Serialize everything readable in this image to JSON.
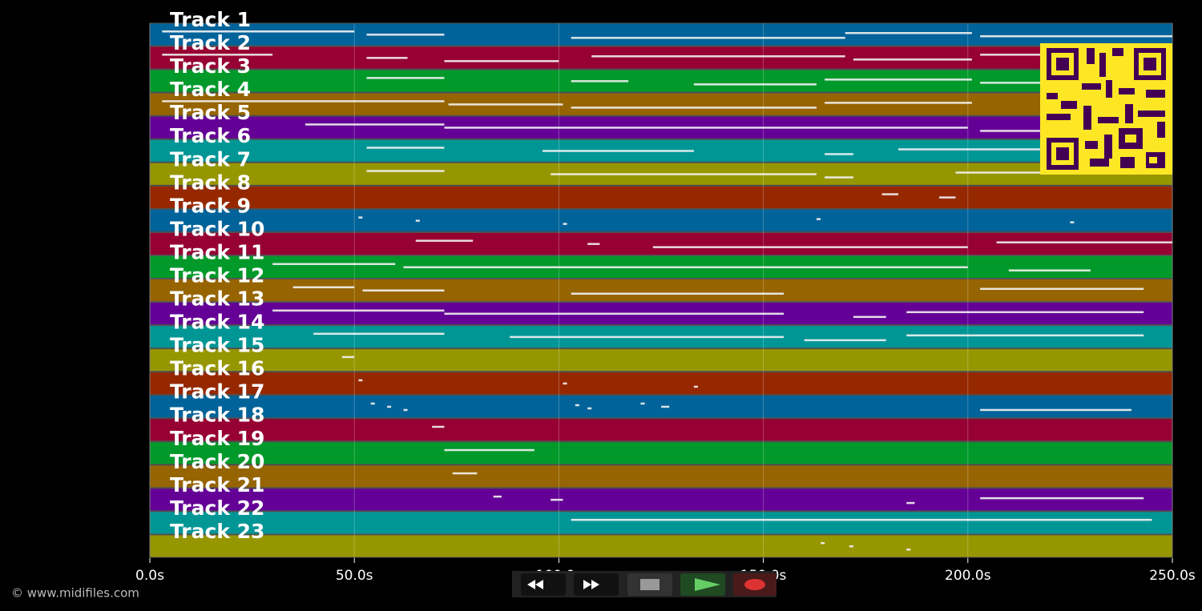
{
  "chart_data": {
    "type": "timeline",
    "xlim": [
      0,
      250
    ],
    "xticks": [
      {
        "value": 0,
        "label": "0.0s"
      },
      {
        "value": 50,
        "label": "50.0s"
      },
      {
        "value": 100,
        "label": "100.0s"
      },
      {
        "value": 150,
        "label": "150.0s"
      },
      {
        "value": 200,
        "label": "200.0s"
      },
      {
        "value": 250,
        "label": "250.0s"
      }
    ],
    "grid": true,
    "tracks": [
      {
        "name": "Track 1",
        "color": "#00639a",
        "notes": [
          [
            3,
            50
          ],
          [
            53,
            72
          ],
          [
            103,
            170
          ],
          [
            170,
            201
          ],
          [
            203,
            250
          ]
        ]
      },
      {
        "name": "Track 2",
        "color": "#960032",
        "notes": [
          [
            3,
            30
          ],
          [
            53,
            63
          ],
          [
            72,
            100
          ],
          [
            108,
            170
          ],
          [
            172,
            201
          ],
          [
            203,
            218
          ]
        ]
      },
      {
        "name": "Track 3",
        "color": "#00992a",
        "notes": [
          [
            53,
            72
          ],
          [
            103,
            117
          ],
          [
            133,
            163
          ],
          [
            165,
            201
          ],
          [
            203,
            218
          ]
        ]
      },
      {
        "name": "Track 4",
        "color": "#966400",
        "notes": [
          [
            3,
            72
          ],
          [
            73,
            101
          ],
          [
            103,
            163
          ],
          [
            165,
            201
          ]
        ]
      },
      {
        "name": "Track 5",
        "color": "#640096",
        "notes": [
          [
            38,
            72
          ],
          [
            72,
            200
          ],
          [
            203,
            218
          ]
        ]
      },
      {
        "name": "Track 6",
        "color": "#009696",
        "notes": [
          [
            53,
            72
          ],
          [
            96,
            133
          ],
          [
            165,
            172
          ],
          [
            183,
            218
          ]
        ]
      },
      {
        "name": "Track 7",
        "color": "#969600",
        "notes": [
          [
            53,
            72
          ],
          [
            98,
            163
          ],
          [
            165,
            172
          ],
          [
            197,
            218
          ]
        ]
      },
      {
        "name": "Track 8",
        "color": "#962800",
        "notes": [
          [
            179,
            183
          ],
          [
            193,
            197
          ]
        ]
      },
      {
        "name": "Track 9",
        "color": "#00639a",
        "notes": [
          [
            51,
            52
          ],
          [
            65,
            66
          ],
          [
            101,
            102
          ],
          [
            163,
            164
          ],
          [
            225,
            226
          ]
        ]
      },
      {
        "name": "Track 10",
        "color": "#960032",
        "notes": [
          [
            65,
            79
          ],
          [
            107,
            110
          ],
          [
            123,
            200
          ],
          [
            207,
            250
          ]
        ]
      },
      {
        "name": "Track 11",
        "color": "#00992a",
        "notes": [
          [
            30,
            60
          ],
          [
            62,
            200
          ],
          [
            210,
            230
          ]
        ]
      },
      {
        "name": "Track 12",
        "color": "#966400",
        "notes": [
          [
            35,
            50
          ],
          [
            52,
            72
          ],
          [
            103,
            155
          ],
          [
            203,
            243
          ]
        ]
      },
      {
        "name": "Track 13",
        "color": "#640096",
        "notes": [
          [
            30,
            72
          ],
          [
            72,
            155
          ],
          [
            172,
            180
          ],
          [
            185,
            243
          ]
        ]
      },
      {
        "name": "Track 14",
        "color": "#009696",
        "notes": [
          [
            40,
            72
          ],
          [
            88,
            155
          ],
          [
            160,
            180
          ],
          [
            185,
            243
          ]
        ]
      },
      {
        "name": "Track 15",
        "color": "#969600",
        "notes": [
          [
            47,
            50
          ]
        ]
      },
      {
        "name": "Track 16",
        "color": "#962800",
        "notes": [
          [
            51,
            52
          ],
          [
            101,
            102
          ],
          [
            133,
            134
          ]
        ]
      },
      {
        "name": "Track 17",
        "color": "#00639a",
        "notes": [
          [
            54,
            55
          ],
          [
            58,
            59
          ],
          [
            62,
            63
          ],
          [
            104,
            105
          ],
          [
            107,
            108
          ],
          [
            120,
            121
          ],
          [
            125,
            127
          ],
          [
            203,
            240
          ]
        ]
      },
      {
        "name": "Track 18",
        "color": "#960032",
        "notes": [
          [
            69,
            72
          ]
        ]
      },
      {
        "name": "Track 19",
        "color": "#00992a",
        "notes": [
          [
            72,
            94
          ]
        ]
      },
      {
        "name": "Track 20",
        "color": "#966400",
        "notes": [
          [
            74,
            80
          ]
        ]
      },
      {
        "name": "Track 21",
        "color": "#640096",
        "notes": [
          [
            84,
            86
          ],
          [
            98,
            101
          ],
          [
            185,
            187
          ],
          [
            203,
            243
          ]
        ]
      },
      {
        "name": "Track 22",
        "color": "#009696",
        "notes": [
          [
            103,
            245
          ]
        ]
      },
      {
        "name": "Track 23",
        "color": "#969600",
        "notes": [
          [
            164,
            165
          ],
          [
            171,
            172
          ],
          [
            185,
            186
          ]
        ]
      }
    ]
  },
  "footer": "© www.midifiles.com"
}
